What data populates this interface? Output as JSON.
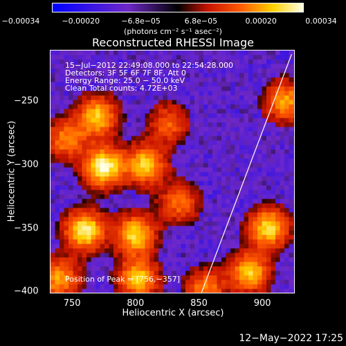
{
  "colorbar": {
    "ticks": [
      "−0.00034",
      "−0.00020",
      "−6.8e−05",
      "6.8e−05",
      "0.00020",
      "0.00034"
    ],
    "units": "(photons cm⁻² s⁻¹ asec⁻²)"
  },
  "chart_data": {
    "type": "heatmap",
    "title": "Reconstructed RHESSI Image",
    "xlabel": "Heliocentric X (arcsec)",
    "ylabel": "Heliocentric Y (arcsec)",
    "xlim": [
      733,
      925
    ],
    "ylim": [
      -401,
      -210
    ],
    "xticks": [
      "750",
      "800",
      "850",
      "900"
    ],
    "yticks": [
      "−250",
      "−300",
      "−350",
      "−400"
    ],
    "color_range": [
      -0.00034,
      0.00034
    ],
    "limb_line": [
      [
        852,
        -401
      ],
      [
        923,
        -213
      ]
    ],
    "info_lines": [
      "15−Jul−2012 22:49:08.000 to 22:54:28.000",
      "Detectors: 3F 5F 6F 7F 8F, Att 0",
      "Energy Range: 25.0 − 50.0 keV",
      "Clean     Total counts: 4.72E+03"
    ],
    "peak_text": "Position of Peak = [756,−357]",
    "sources": [
      {
        "x": 775,
        "y": -302,
        "strength": 1.0
      },
      {
        "x": 760,
        "y": -352,
        "strength": 0.95
      },
      {
        "x": 770,
        "y": -262,
        "strength": 0.8
      },
      {
        "x": 808,
        "y": -300,
        "strength": 0.8
      },
      {
        "x": 800,
        "y": -355,
        "strength": 0.85
      },
      {
        "x": 802,
        "y": -390,
        "strength": 0.8
      },
      {
        "x": 745,
        "y": -280,
        "strength": 0.6
      },
      {
        "x": 740,
        "y": -390,
        "strength": 0.7
      },
      {
        "x": 835,
        "y": -330,
        "strength": 0.55
      },
      {
        "x": 905,
        "y": -350,
        "strength": 0.85
      },
      {
        "x": 890,
        "y": -385,
        "strength": 0.8
      },
      {
        "x": 918,
        "y": -250,
        "strength": 0.7
      },
      {
        "x": 826,
        "y": -268,
        "strength": 0.5
      },
      {
        "x": 855,
        "y": -398,
        "strength": 0.6
      }
    ]
  },
  "footer": {
    "timestamp": "12−May−2022 17:25"
  }
}
